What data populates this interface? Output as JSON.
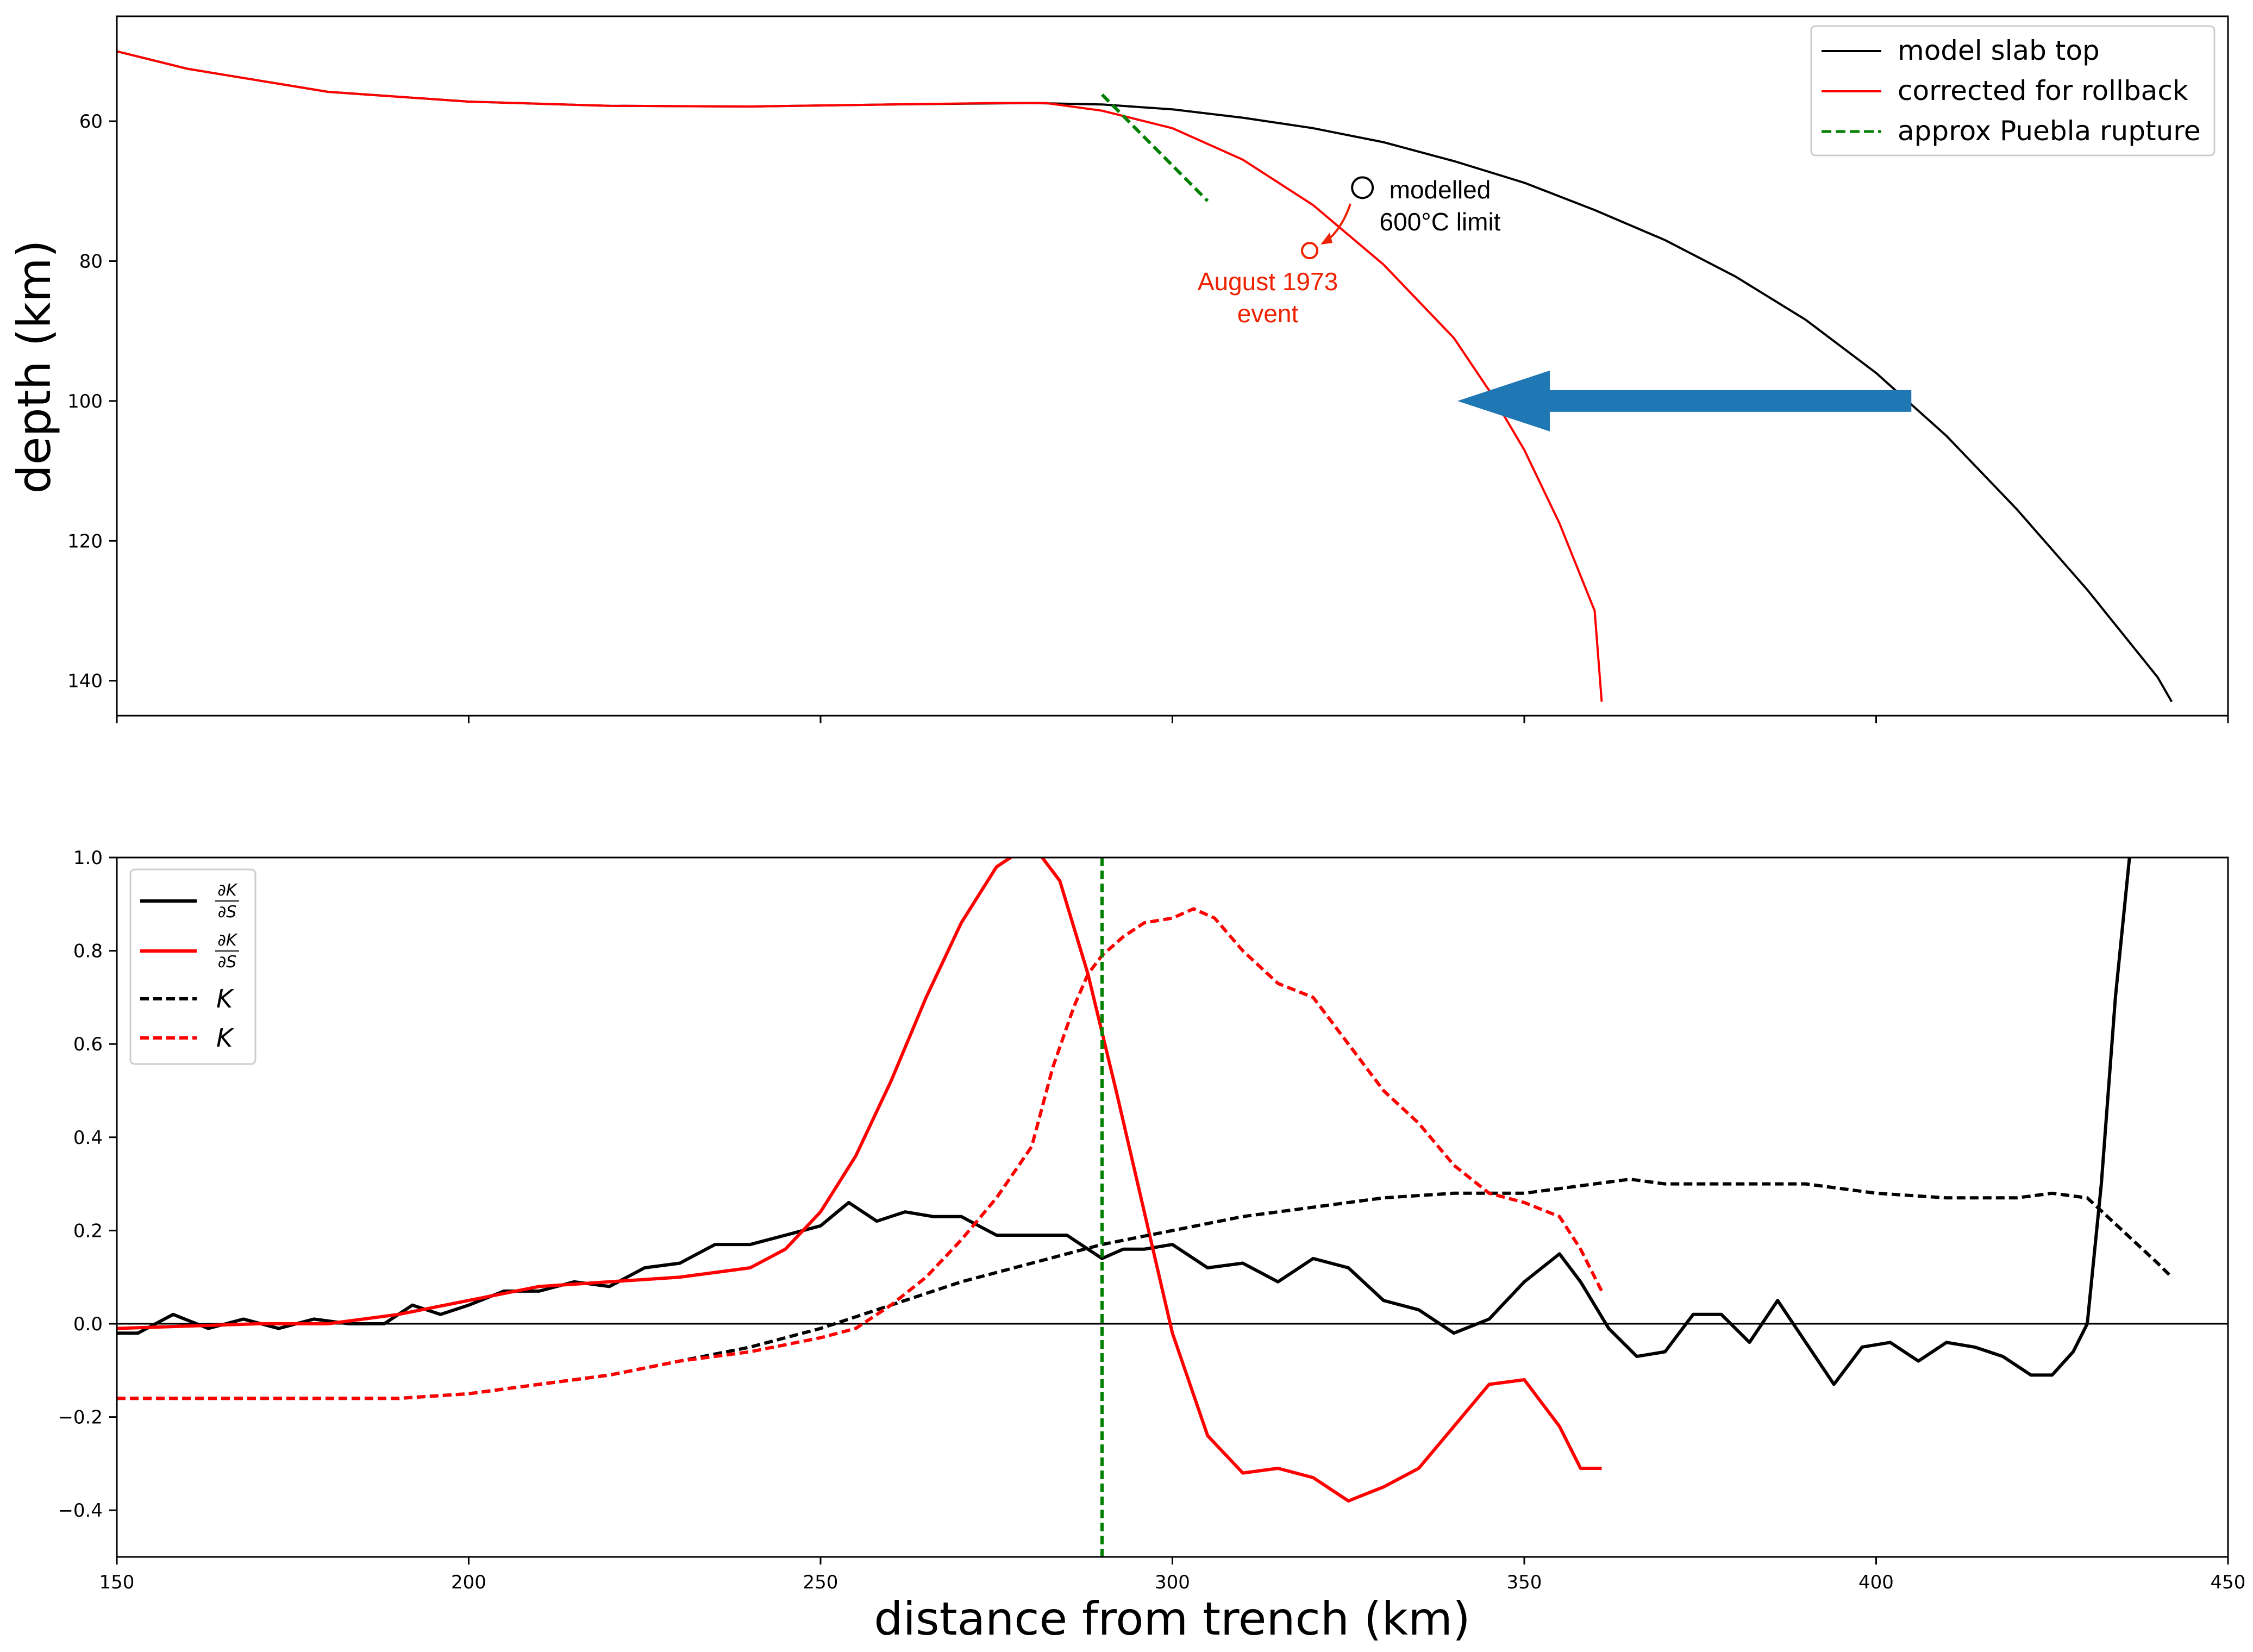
{
  "chart_data": [
    {
      "type": "line",
      "ylabel": "depth (km)",
      "xlim": [
        150,
        450
      ],
      "ylim": [
        145,
        45
      ],
      "y_inverted": true,
      "yticks": [
        60,
        80,
        100,
        120,
        140
      ],
      "legend": {
        "placement": "top-right",
        "entries": [
          {
            "label": "model slab top",
            "color": "#000000",
            "dash": "solid"
          },
          {
            "label": "corrected for rollback",
            "color": "#ff0000",
            "dash": "solid"
          },
          {
            "label": "approx Puebla rupture",
            "color": "#008000",
            "dash": "dashed"
          }
        ]
      },
      "series": [
        {
          "name": "model slab top",
          "color": "#000000",
          "dash": "solid",
          "x": [
            150,
            160,
            180,
            200,
            220,
            240,
            260,
            280,
            290,
            300,
            310,
            320,
            330,
            340,
            350,
            360,
            370,
            380,
            390,
            400,
            410,
            420,
            430,
            440,
            442
          ],
          "y": [
            50,
            52.5,
            55.8,
            57.2,
            57.8,
            57.9,
            57.6,
            57.4,
            57.6,
            58.3,
            59.5,
            61.0,
            63.0,
            65.7,
            68.8,
            72.7,
            77.0,
            82.2,
            88.4,
            96.0,
            105.0,
            115.5,
            127.0,
            139.5,
            143
          ]
        },
        {
          "name": "corrected for rollback",
          "color": "#ff0000",
          "dash": "solid",
          "x": [
            150,
            160,
            180,
            200,
            220,
            240,
            260,
            275,
            282,
            290,
            300,
            310,
            320,
            330,
            340,
            345,
            350,
            355,
            360,
            361
          ],
          "y": [
            50,
            52.5,
            55.8,
            57.2,
            57.8,
            57.9,
            57.6,
            57.4,
            57.4,
            58.5,
            61.0,
            65.5,
            72.0,
            80.5,
            91.0,
            98.5,
            107.0,
            117.5,
            130.0,
            143
          ]
        },
        {
          "name": "approx Puebla rupture",
          "color": "#008000",
          "dash": "dashed",
          "x": [
            290,
            305
          ],
          "y": [
            56.2,
            71.4
          ]
        }
      ],
      "annotations": [
        {
          "text_lines": [
            "modelled",
            "600°C limit"
          ],
          "color": "#000000",
          "point": [
            327,
            69.5
          ]
        },
        {
          "text_lines": [
            "August 1973",
            "event"
          ],
          "color": "#ee2200",
          "point": [
            319.5,
            78.5
          ]
        }
      ],
      "arrow": {
        "from": [
          405,
          100
        ],
        "to": [
          340.5,
          100
        ],
        "color": "#1f77b4"
      }
    },
    {
      "type": "line",
      "xlabel": "distance from trench (km)",
      "xlim": [
        150,
        450
      ],
      "ylim": [
        -0.5,
        1.0
      ],
      "xticks": [
        150,
        200,
        250,
        300,
        350,
        400,
        450
      ],
      "yticks": [
        1.0,
        0.8,
        0.6,
        0.4,
        0.2,
        0.0,
        -0.2,
        -0.4
      ],
      "zero_line": true,
      "vline": {
        "x": 290,
        "color": "#008000",
        "dash": "dashed"
      },
      "legend": {
        "placement": "top-left",
        "entries": [
          {
            "label": "∂K/∂S",
            "color": "#000000",
            "dash": "solid"
          },
          {
            "label": "∂K/∂S",
            "color": "#ff0000",
            "dash": "solid"
          },
          {
            "label": "K",
            "color": "#000000",
            "dash": "dashed"
          },
          {
            "label": "K",
            "color": "#ff0000",
            "dash": "dashed"
          }
        ]
      },
      "series": [
        {
          "name": "∂K/∂S",
          "color": "#000000",
          "dash": "solid",
          "x": [
            150,
            153,
            158,
            163,
            168,
            173,
            178,
            183,
            188,
            192,
            196,
            200,
            205,
            210,
            215,
            220,
            225,
            230,
            235,
            240,
            245,
            250,
            254,
            258,
            262,
            266,
            270,
            275,
            280,
            285,
            290,
            293,
            296,
            300,
            305,
            310,
            315,
            320,
            325,
            330,
            335,
            340,
            345,
            350,
            355,
            358,
            362,
            366,
            370,
            374,
            378,
            382,
            386,
            390,
            394,
            398,
            402,
            406,
            410,
            414,
            418,
            422,
            425,
            428,
            430,
            432,
            434,
            436
          ],
          "y": [
            -0.02,
            -0.02,
            0.02,
            -0.01,
            0.01,
            -0.01,
            0.01,
            0.0,
            0.0,
            0.04,
            0.02,
            0.04,
            0.07,
            0.07,
            0.09,
            0.08,
            0.12,
            0.13,
            0.17,
            0.17,
            0.19,
            0.21,
            0.26,
            0.22,
            0.24,
            0.23,
            0.23,
            0.19,
            0.19,
            0.19,
            0.14,
            0.16,
            0.16,
            0.17,
            0.12,
            0.13,
            0.09,
            0.14,
            0.12,
            0.05,
            0.03,
            -0.02,
            0.01,
            0.09,
            0.15,
            0.09,
            -0.01,
            -0.07,
            -0.06,
            0.02,
            0.02,
            -0.04,
            0.05,
            -0.04,
            -0.13,
            -0.05,
            -0.04,
            -0.08,
            -0.04,
            -0.05,
            -0.07,
            -0.11,
            -0.11,
            -0.06,
            0.0,
            0.3,
            0.7,
            1.0
          ]
        },
        {
          "name": "∂K/∂S",
          "color": "#ff0000",
          "dash": "solid",
          "x": [
            150,
            170,
            180,
            190,
            200,
            210,
            220,
            230,
            240,
            245,
            250,
            255,
            260,
            265,
            270,
            275,
            280,
            284,
            288,
            292,
            296,
            300,
            305,
            310,
            315,
            320,
            325,
            330,
            335,
            340,
            345,
            350,
            355,
            358,
            361
          ],
          "y": [
            -0.01,
            0.0,
            0.0,
            0.02,
            0.05,
            0.08,
            0.09,
            0.1,
            0.12,
            0.16,
            0.24,
            0.36,
            0.52,
            0.7,
            0.86,
            0.98,
            1.03,
            0.95,
            0.75,
            0.5,
            0.24,
            -0.02,
            -0.24,
            -0.32,
            -0.31,
            -0.33,
            -0.38,
            -0.35,
            -0.31,
            -0.22,
            -0.13,
            -0.12,
            -0.22,
            -0.31,
            -0.31
          ]
        },
        {
          "name": "K",
          "color": "#000000",
          "dash": "dashed",
          "x": [
            150,
            170,
            190,
            200,
            210,
            220,
            230,
            240,
            250,
            260,
            270,
            280,
            290,
            300,
            310,
            320,
            330,
            340,
            350,
            360,
            365,
            370,
            380,
            390,
            400,
            410,
            420,
            425,
            430,
            435,
            440,
            442
          ],
          "y": [
            -0.16,
            -0.16,
            -0.16,
            -0.15,
            -0.13,
            -0.11,
            -0.08,
            -0.05,
            -0.01,
            0.04,
            0.09,
            0.13,
            0.17,
            0.2,
            0.23,
            0.25,
            0.27,
            0.28,
            0.28,
            0.3,
            0.31,
            0.3,
            0.3,
            0.3,
            0.28,
            0.27,
            0.27,
            0.28,
            0.27,
            0.2,
            0.13,
            0.1
          ]
        },
        {
          "name": "K",
          "color": "#ff0000",
          "dash": "dashed",
          "x": [
            150,
            170,
            190,
            200,
            210,
            220,
            230,
            240,
            250,
            255,
            260,
            265,
            270,
            275,
            280,
            283,
            286,
            288,
            290,
            293,
            296,
            300,
            303,
            306,
            310,
            315,
            320,
            325,
            330,
            335,
            340,
            345,
            350,
            355,
            358,
            361
          ],
          "y": [
            -0.16,
            -0.16,
            -0.16,
            -0.15,
            -0.13,
            -0.11,
            -0.08,
            -0.06,
            -0.03,
            -0.01,
            0.04,
            0.1,
            0.18,
            0.27,
            0.38,
            0.55,
            0.68,
            0.75,
            0.79,
            0.83,
            0.86,
            0.87,
            0.89,
            0.87,
            0.8,
            0.73,
            0.7,
            0.6,
            0.5,
            0.43,
            0.34,
            0.28,
            0.26,
            0.23,
            0.16,
            0.07
          ]
        }
      ]
    }
  ]
}
